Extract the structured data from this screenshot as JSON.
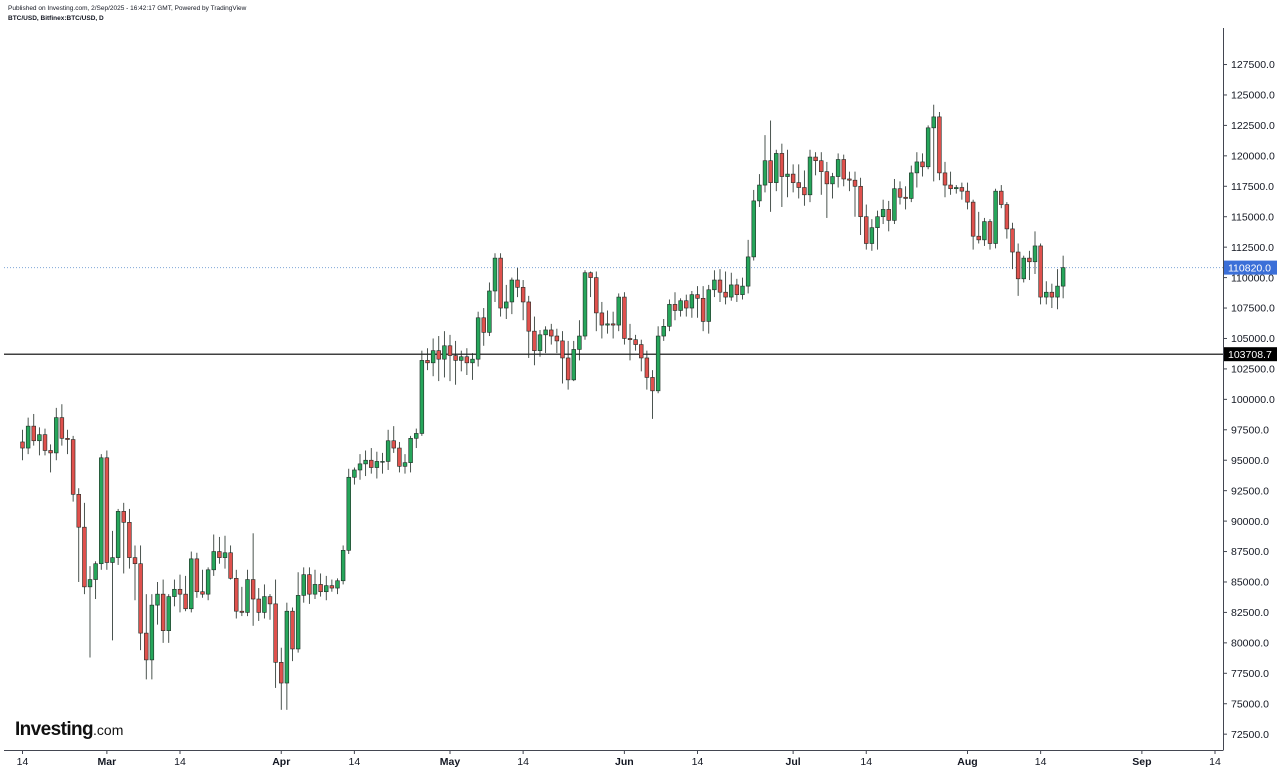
{
  "header": {
    "published": "Published on Investing.com, 2/Sep/2025 - 16:42:17 GMT, Powered by TradingView",
    "title": "BTC/USD, Bitfinex:BTC/USD, D"
  },
  "logo": {
    "main": "Investing",
    "suffix": ".com"
  },
  "chart_data": {
    "type": "candlestick",
    "interval": "D",
    "ylim": [
      71200,
      130500
    ],
    "y_ticks": [
      "72500.0",
      "75000.0",
      "77500.0",
      "80000.0",
      "82500.0",
      "85000.0",
      "87500.0",
      "90000.0",
      "92500.0",
      "95000.0",
      "97500.0",
      "100000.0",
      "102500.0",
      "105000.0",
      "107500.0",
      "110000.0",
      "112500.0",
      "115000.0",
      "117500.0",
      "120000.0",
      "122500.0",
      "125000.0",
      "127500.0"
    ],
    "x_ticks": [
      {
        "label": "14",
        "date": "2025-02-14"
      },
      {
        "label": "Mar",
        "date": "2025-03-01"
      },
      {
        "label": "14",
        "date": "2025-03-14"
      },
      {
        "label": "Apr",
        "date": "2025-04-01"
      },
      {
        "label": "14",
        "date": "2025-04-14"
      },
      {
        "label": "May",
        "date": "2025-05-01"
      },
      {
        "label": "14",
        "date": "2025-05-14"
      },
      {
        "label": "Jun",
        "date": "2025-06-01"
      },
      {
        "label": "14",
        "date": "2025-06-14"
      },
      {
        "label": "Jul",
        "date": "2025-07-01"
      },
      {
        "label": "14",
        "date": "2025-07-14"
      },
      {
        "label": "Aug",
        "date": "2025-08-01"
      },
      {
        "label": "14",
        "date": "2025-08-14"
      },
      {
        "label": "Sep",
        "date": "2025-09-01"
      },
      {
        "label": "14",
        "date": "2025-09-14"
      }
    ],
    "start_date": "2025-02-14",
    "last_price": {
      "label": "110820.0",
      "value": 110820,
      "color": "#3b6fd8"
    },
    "support_line": {
      "label": "103708.7",
      "value": 103708.7,
      "color": "#000000"
    },
    "up_color": "#26a65b",
    "down_color": "#e0514d",
    "candles": [
      [
        96500,
        97500,
        95000,
        96000
      ],
      [
        96000,
        98500,
        95500,
        97800
      ],
      [
        97800,
        98800,
        96200,
        96600
      ],
      [
        96600,
        97700,
        95400,
        97100
      ],
      [
        97100,
        97600,
        95400,
        95800
      ],
      [
        95800,
        96300,
        94000,
        95600
      ],
      [
        95600,
        99300,
        95000,
        98500
      ],
      [
        98500,
        99600,
        96200,
        96800
      ],
      [
        96800,
        97500,
        95500,
        96700
      ],
      [
        96700,
        97000,
        91600,
        92200
      ],
      [
        92200,
        92700,
        85000,
        89500
      ],
      [
        89500,
        91500,
        84000,
        84600
      ],
      [
        84600,
        86300,
        78800,
        85200
      ],
      [
        85200,
        86700,
        83600,
        86500
      ],
      [
        86500,
        95500,
        86000,
        95200
      ],
      [
        95200,
        95800,
        86000,
        86600
      ],
      [
        86600,
        89200,
        80200,
        87000
      ],
      [
        87000,
        91000,
        86400,
        90800
      ],
      [
        90800,
        91500,
        85700,
        89900
      ],
      [
        89900,
        91000,
        86100,
        87000
      ],
      [
        87000,
        88000,
        83500,
        86500
      ],
      [
        86500,
        88000,
        79400,
        80800
      ],
      [
        80800,
        84000,
        77000,
        78600
      ],
      [
        78600,
        84000,
        77000,
        83100
      ],
      [
        83100,
        85000,
        81500,
        84000
      ],
      [
        84000,
        85200,
        80000,
        81000
      ],
      [
        81000,
        84000,
        80000,
        83800
      ],
      [
        83800,
        85200,
        83000,
        84400
      ],
      [
        84400,
        85600,
        82500,
        84000
      ],
      [
        84000,
        85500,
        82600,
        82800
      ],
      [
        82800,
        87500,
        82500,
        86900
      ],
      [
        86900,
        87400,
        83700,
        84200
      ],
      [
        84200,
        86000,
        83700,
        84000
      ],
      [
        84000,
        86200,
        83500,
        86000
      ],
      [
        86000,
        88900,
        85500,
        87500
      ],
      [
        87500,
        88700,
        86500,
        87000
      ],
      [
        87000,
        88800,
        86100,
        87400
      ],
      [
        87400,
        88000,
        85200,
        85300
      ],
      [
        85300,
        86000,
        82000,
        82600
      ],
      [
        82600,
        84600,
        82200,
        82500
      ],
      [
        82500,
        86000,
        82200,
        85200
      ],
      [
        85200,
        89000,
        81400,
        83600
      ],
      [
        83600,
        84500,
        81800,
        82500
      ],
      [
        82500,
        84800,
        82000,
        83800
      ],
      [
        83800,
        84000,
        81900,
        83200
      ],
      [
        83200,
        85200,
        76300,
        78400
      ],
      [
        78400,
        79600,
        74500,
        76700
      ],
      [
        76700,
        83300,
        74500,
        82600
      ],
      [
        82600,
        82900,
        78500,
        79500
      ],
      [
        79500,
        85800,
        79200,
        83900
      ],
      [
        83900,
        86200,
        83300,
        85600
      ],
      [
        85600,
        86200,
        83200,
        84000
      ],
      [
        84000,
        86000,
        83600,
        84800
      ],
      [
        84800,
        85700,
        83800,
        84200
      ],
      [
        84200,
        85500,
        83500,
        84700
      ],
      [
        84700,
        85200,
        84200,
        84500
      ],
      [
        84500,
        85300,
        84000,
        85100
      ],
      [
        85100,
        88000,
        84800,
        87600
      ],
      [
        87600,
        94300,
        87300,
        93600
      ],
      [
        93600,
        94400,
        93000,
        94200
      ],
      [
        94200,
        95500,
        93400,
        94700
      ],
      [
        94700,
        95800,
        93700,
        95000
      ],
      [
        95000,
        96000,
        93900,
        94400
      ],
      [
        94400,
        95700,
        93500,
        94900
      ],
      [
        94900,
        95600,
        93900,
        94900
      ],
      [
        94900,
        97500,
        94200,
        96600
      ],
      [
        96600,
        97800,
        95600,
        96000
      ],
      [
        96000,
        96500,
        94000,
        94500
      ],
      [
        94500,
        95500,
        93900,
        94800
      ],
      [
        94800,
        97000,
        94000,
        96800
      ],
      [
        96800,
        97600,
        96000,
        97200
      ],
      [
        97200,
        104000,
        97000,
        103200
      ],
      [
        103200,
        104200,
        102400,
        103000
      ],
      [
        103000,
        105000,
        101900,
        104000
      ],
      [
        104000,
        105200,
        101500,
        103300
      ],
      [
        103300,
        105600,
        101800,
        104400
      ],
      [
        104400,
        105300,
        101500,
        103600
      ],
      [
        103600,
        104800,
        101200,
        103200
      ],
      [
        103200,
        104000,
        102300,
        103500
      ],
      [
        103500,
        104200,
        102000,
        103000
      ],
      [
        103000,
        103800,
        101600,
        103300
      ],
      [
        103300,
        107200,
        102700,
        106700
      ],
      [
        106700,
        107500,
        104400,
        105500
      ],
      [
        105500,
        109600,
        105200,
        108900
      ],
      [
        108900,
        112000,
        108000,
        111600
      ],
      [
        111600,
        112000,
        106800,
        107500
      ],
      [
        107500,
        109400,
        106600,
        108000
      ],
      [
        108000,
        110000,
        107000,
        109800
      ],
      [
        109800,
        110800,
        108400,
        109200
      ],
      [
        109200,
        109800,
        106500,
        108000
      ],
      [
        108000,
        108500,
        103400,
        105600
      ],
      [
        105600,
        106800,
        102800,
        104000
      ],
      [
        104000,
        105700,
        103500,
        105300
      ],
      [
        105300,
        106000,
        103800,
        105700
      ],
      [
        105700,
        106200,
        104500,
        105200
      ],
      [
        105200,
        105800,
        103800,
        104800
      ],
      [
        104800,
        105600,
        101300,
        103400
      ],
      [
        103400,
        104800,
        100800,
        101600
      ],
      [
        101600,
        104800,
        101500,
        104100
      ],
      [
        104100,
        106500,
        103200,
        105200
      ],
      [
        105200,
        110600,
        104900,
        110400
      ],
      [
        110400,
        110500,
        108400,
        110000
      ],
      [
        110000,
        110500,
        105600,
        107100
      ],
      [
        107100,
        108000,
        105000,
        106100
      ],
      [
        106100,
        107300,
        105400,
        106200
      ],
      [
        106200,
        107200,
        105000,
        106100
      ],
      [
        106100,
        108700,
        105600,
        108400
      ],
      [
        108400,
        108800,
        104500,
        105000
      ],
      [
        105000,
        106200,
        103200,
        104900
      ],
      [
        104900,
        105300,
        104000,
        104500
      ],
      [
        104500,
        104900,
        102300,
        103400
      ],
      [
        103400,
        104000,
        100800,
        101800
      ],
      [
        101800,
        102400,
        98400,
        100700
      ],
      [
        100700,
        106000,
        100500,
        105200
      ],
      [
        105200,
        106600,
        104800,
        106000
      ],
      [
        106000,
        108200,
        105600,
        107800
      ],
      [
        107800,
        108800,
        106500,
        107300
      ],
      [
        107300,
        108300,
        106800,
        108100
      ],
      [
        108100,
        108600,
        106800,
        107500
      ],
      [
        107500,
        108900,
        106700,
        108600
      ],
      [
        108600,
        109300,
        106700,
        108300
      ],
      [
        108300,
        109300,
        105600,
        106400
      ],
      [
        106400,
        109400,
        105400,
        109000
      ],
      [
        109000,
        110600,
        108400,
        109800
      ],
      [
        109800,
        110700,
        108000,
        108800
      ],
      [
        108800,
        110500,
        107800,
        108400
      ],
      [
        108400,
        110400,
        108100,
        109400
      ],
      [
        109400,
        109900,
        108000,
        108600
      ],
      [
        108600,
        110000,
        108200,
        109300
      ],
      [
        109300,
        113100,
        108700,
        111700
      ],
      [
        111700,
        117200,
        111400,
        116300
      ],
      [
        116300,
        118500,
        115800,
        117600
      ],
      [
        117600,
        121700,
        117000,
        119600
      ],
      [
        119600,
        122900,
        115400,
        117800
      ],
      [
        117800,
        120500,
        117100,
        120200
      ],
      [
        120200,
        121000,
        115800,
        118300
      ],
      [
        118300,
        120500,
        116600,
        118500
      ],
      [
        118500,
        119300,
        117000,
        117800
      ],
      [
        117800,
        119300,
        116500,
        117400
      ],
      [
        117400,
        118800,
        115900,
        116800
      ],
      [
        116800,
        120500,
        116200,
        119900
      ],
      [
        119900,
        120300,
        118400,
        119600
      ],
      [
        119600,
        120300,
        116800,
        118700
      ],
      [
        118700,
        119500,
        114900,
        117700
      ],
      [
        117700,
        118600,
        116500,
        118300
      ],
      [
        118300,
        120200,
        117400,
        119700
      ],
      [
        119700,
        120100,
        117500,
        118100
      ],
      [
        118100,
        118700,
        117100,
        118000
      ],
      [
        118000,
        118700,
        115000,
        117500
      ],
      [
        117500,
        118200,
        113500,
        115000
      ],
      [
        115000,
        116000,
        112300,
        112800
      ],
      [
        112800,
        114800,
        112200,
        114100
      ],
      [
        114100,
        115500,
        112300,
        115000
      ],
      [
        115000,
        116400,
        114400,
        115600
      ],
      [
        115600,
        116300,
        113800,
        114700
      ],
      [
        114700,
        118100,
        114400,
        117300
      ],
      [
        117300,
        117900,
        116000,
        116600
      ],
      [
        116600,
        117500,
        115600,
        116500
      ],
      [
        116500,
        119200,
        116200,
        118600
      ],
      [
        118600,
        120300,
        117400,
        119500
      ],
      [
        119500,
        120200,
        118300,
        119100
      ],
      [
        119100,
        122500,
        118900,
        122300
      ],
      [
        122300,
        124200,
        117900,
        123200
      ],
      [
        123200,
        123600,
        118000,
        118600
      ],
      [
        118600,
        119500,
        116600,
        117600
      ],
      [
        117600,
        118700,
        116800,
        117300
      ],
      [
        117300,
        117600,
        116900,
        117400
      ],
      [
        117400,
        117800,
        116400,
        117100
      ],
      [
        117100,
        117800,
        115600,
        116200
      ],
      [
        116200,
        116400,
        112300,
        113400
      ],
      [
        113400,
        115400,
        112800,
        113100
      ],
      [
        113100,
        114900,
        112600,
        114600
      ],
      [
        114600,
        114800,
        112300,
        112800
      ],
      [
        112800,
        117300,
        112400,
        117100
      ],
      [
        117100,
        117600,
        115700,
        116000
      ],
      [
        116000,
        116200,
        113200,
        114000
      ],
      [
        114000,
        114500,
        110700,
        112100
      ],
      [
        112100,
        112800,
        108500,
        109900
      ],
      [
        109900,
        111800,
        109600,
        111600
      ],
      [
        111600,
        112200,
        109800,
        111300
      ],
      [
        111300,
        113800,
        110300,
        112600
      ],
      [
        112600,
        112800,
        107800,
        108400
      ],
      [
        108400,
        109700,
        107800,
        108800
      ],
      [
        108800,
        109500,
        107500,
        108400
      ],
      [
        108400,
        110700,
        107400,
        109300
      ],
      [
        109300,
        111800,
        108300,
        110820
      ]
    ]
  }
}
